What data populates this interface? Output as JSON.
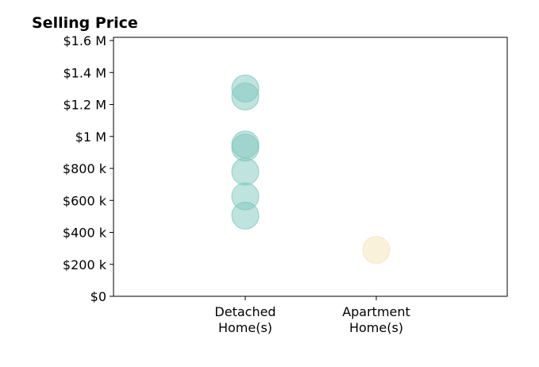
{
  "chart_data": {
    "type": "scatter",
    "title": "Selling Price",
    "xlabel": "",
    "ylabel": "",
    "categories": [
      [
        "Detached",
        "Home(s)"
      ],
      [
        "Apartment",
        "Home(s)"
      ]
    ],
    "yticks": [
      {
        "value": 0,
        "label": "$0"
      },
      {
        "value": 200000,
        "label": "$200 k"
      },
      {
        "value": 400000,
        "label": "$400 k"
      },
      {
        "value": 600000,
        "label": "$600 k"
      },
      {
        "value": 800000,
        "label": "$800 k"
      },
      {
        "value": 1000000,
        "label": "$1 M"
      },
      {
        "value": 1200000,
        "label": "$1.2 M"
      },
      {
        "value": 1400000,
        "label": "$1.4 M"
      },
      {
        "value": 1600000,
        "label": "$1.6 M"
      }
    ],
    "ylim": [
      0,
      1620000
    ],
    "grid": false,
    "series": [
      {
        "category_index": 0,
        "color": "#7fc7bd",
        "values": [
          1300000,
          1250000,
          950000,
          930000,
          780000,
          625000,
          505000
        ]
      },
      {
        "category_index": 1,
        "color": "#f5e3b8",
        "values": [
          290000
        ]
      }
    ]
  }
}
